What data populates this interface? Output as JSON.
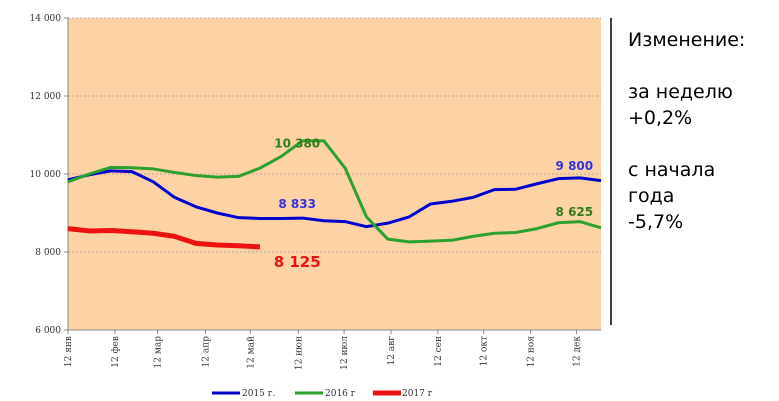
{
  "chart_data": {
    "type": "line",
    "x": [
      0,
      2,
      4,
      6,
      8,
      10,
      12,
      14,
      16,
      18,
      20,
      22,
      24,
      26,
      28,
      30,
      32,
      34,
      36,
      38,
      40,
      42,
      44,
      46,
      48,
      50
    ],
    "series": [
      {
        "name": "2015 г.",
        "color": "#0000cc",
        "width": 3,
        "values": [
          9850,
          9980,
          10080,
          10060,
          9800,
          9400,
          9160,
          9000,
          8880,
          8860,
          8860,
          8870,
          8800,
          8780,
          8650,
          8740,
          8900,
          9230,
          9300,
          9400,
          9600,
          9610,
          9750,
          9880,
          9900,
          9830
        ]
      },
      {
        "name": "2016 г",
        "color": "#2ca02c",
        "width": 3,
        "values": [
          9800,
          10000,
          10170,
          10160,
          10130,
          10040,
          9960,
          9920,
          9940,
          10150,
          10450,
          10850,
          10850,
          10150,
          8900,
          8330,
          8260,
          8280,
          8300,
          8400,
          8480,
          8500,
          8600,
          8750,
          8780,
          8620
        ]
      },
      {
        "name": "2017 г",
        "color": "#ee1111",
        "width": 5,
        "values": [
          8600,
          8540,
          8550,
          8520,
          8480,
          8400,
          8220,
          8180,
          8160,
          8130,
          null,
          null,
          null,
          null,
          null,
          null,
          null,
          null,
          null,
          null,
          null,
          null,
          null,
          null,
          null,
          null
        ]
      }
    ],
    "xlim": [
      0,
      50
    ],
    "xticks": [
      {
        "value": 0,
        "label": "12 янв"
      },
      {
        "value": 4.4,
        "label": "12 фев"
      },
      {
        "value": 8.4,
        "label": "12 мар"
      },
      {
        "value": 12.9,
        "label": "12 апр"
      },
      {
        "value": 17.1,
        "label": "12 май"
      },
      {
        "value": 21.6,
        "label": "12 июн"
      },
      {
        "value": 25.9,
        "label": "12 июл"
      },
      {
        "value": 30.3,
        "label": "12 авг"
      },
      {
        "value": 34.7,
        "label": "12 сен"
      },
      {
        "value": 39,
        "label": "12 окт"
      },
      {
        "value": 43.4,
        "label": "12 ноя"
      },
      {
        "value": 47.7,
        "label": "12 дек"
      }
    ],
    "ylim": [
      6000,
      14000
    ],
    "yticks": [
      {
        "value": 6000,
        "label": "6 000"
      },
      {
        "value": 8000,
        "label": "8 000"
      },
      {
        "value": 10000,
        "label": "10 000"
      },
      {
        "value": 12000,
        "label": "12 000"
      },
      {
        "value": 14000,
        "label": "14 000"
      }
    ],
    "grid": true,
    "background": "#fdd3a6",
    "annotations": [
      {
        "text": "10 380",
        "x": 21.5,
        "y": 10380,
        "color": "#2e7d1a",
        "size": 12
      },
      {
        "text": "8 833",
        "x": 21.5,
        "y": 8833,
        "color": "#3333dd",
        "size": 12
      },
      {
        "text": "9 800",
        "x": 47.5,
        "y": 9800,
        "color": "#3333dd",
        "size": 12
      },
      {
        "text": "8 625",
        "x": 47.5,
        "y": 8625,
        "color": "#2e7d1a",
        "size": 12
      },
      {
        "text": "8 125",
        "x": 21.5,
        "y": 8125,
        "color": "#ee1111",
        "size": 15
      }
    ],
    "side_panel": [
      "Изменение:",
      "",
      "за неделю",
      "+0,2%",
      "",
      "с начала",
      "года",
      "-5,7%"
    ]
  }
}
